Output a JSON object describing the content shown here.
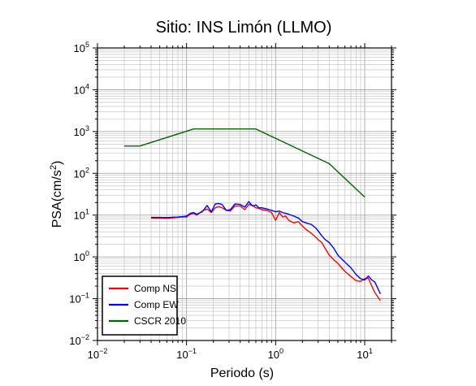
{
  "chart_data": {
    "type": "line",
    "title": "Sitio: INS Limón (LLMO)",
    "xlabel": "Periodo (s)",
    "ylabel": {
      "base": "PSA(cm/s",
      "sup": "2",
      "tail": ")"
    },
    "x_scale": "log",
    "y_scale": "log",
    "xlim": [
      0.01,
      20
    ],
    "ylim": [
      0.01,
      100000
    ],
    "grid": true,
    "legend_position": "bottom-left",
    "x_ticks": [
      {
        "base": "10",
        "exp": "−2",
        "value": 0.01
      },
      {
        "base": "10",
        "exp": "−1",
        "value": 0.1
      },
      {
        "base": "10",
        "exp": "0",
        "value": 1
      },
      {
        "base": "10",
        "exp": "1",
        "value": 10
      }
    ],
    "y_ticks": [
      {
        "base": "10",
        "exp": "−2",
        "value": 0.01
      },
      {
        "base": "10",
        "exp": "−1",
        "value": 0.1
      },
      {
        "base": "10",
        "exp": "0",
        "value": 1
      },
      {
        "base": "10",
        "exp": "1",
        "value": 10
      },
      {
        "base": "10",
        "exp": "2",
        "value": 100
      },
      {
        "base": "10",
        "exp": "3",
        "value": 1000
      },
      {
        "base": "10",
        "exp": "4",
        "value": 10000
      },
      {
        "base": "10",
        "exp": "5",
        "value": 100000
      }
    ],
    "series": [
      {
        "name": "Comp NS",
        "color": "#ff0000",
        "x": [
          0.04,
          0.05,
          0.06,
          0.07,
          0.08,
          0.09,
          0.1,
          0.11,
          0.12,
          0.13,
          0.15,
          0.17,
          0.19,
          0.21,
          0.23,
          0.25,
          0.28,
          0.31,
          0.35,
          0.4,
          0.45,
          0.5,
          0.55,
          0.6,
          0.65,
          0.7,
          0.8,
          0.9,
          1.0,
          1.1,
          1.2,
          1.3,
          1.4,
          1.6,
          1.8,
          2.0,
          2.2,
          2.5,
          2.8,
          3.0,
          3.3,
          3.6,
          4.0,
          4.5,
          5.0,
          5.5,
          6.0,
          7.0,
          8.0,
          9.0,
          10.0,
          11.0,
          12.0,
          13.0,
          15.0
        ],
        "y": [
          8.5,
          8.5,
          8.4,
          8.6,
          8.8,
          9.0,
          9.0,
          10.5,
          11.0,
          10.0,
          12.5,
          14.0,
          11.5,
          15.0,
          16.0,
          15.0,
          13.0,
          12.5,
          16.5,
          16.5,
          13.5,
          18.0,
          17.0,
          15.0,
          14.5,
          13.5,
          13.0,
          11.5,
          7.5,
          11.5,
          9.0,
          9.5,
          7.5,
          6.5,
          7.0,
          5.5,
          4.5,
          3.7,
          3.0,
          2.6,
          2.2,
          1.6,
          1.1,
          0.85,
          0.7,
          0.55,
          0.45,
          0.34,
          0.27,
          0.26,
          0.3,
          0.31,
          0.2,
          0.14,
          0.09
        ]
      },
      {
        "name": "Comp EW",
        "color": "#0000ff",
        "x": [
          0.04,
          0.05,
          0.06,
          0.07,
          0.08,
          0.09,
          0.1,
          0.11,
          0.12,
          0.13,
          0.15,
          0.17,
          0.19,
          0.21,
          0.23,
          0.25,
          0.28,
          0.31,
          0.35,
          0.4,
          0.45,
          0.5,
          0.55,
          0.6,
          0.65,
          0.7,
          0.8,
          0.9,
          1.0,
          1.1,
          1.2,
          1.3,
          1.4,
          1.6,
          1.8,
          2.0,
          2.2,
          2.5,
          2.8,
          3.0,
          3.3,
          3.6,
          4.0,
          4.5,
          5.0,
          5.5,
          6.0,
          7.0,
          8.0,
          9.0,
          10.0,
          11.0,
          12.0,
          13.0,
          15.0
        ],
        "y": [
          8.8,
          8.8,
          8.7,
          8.9,
          9.0,
          9.2,
          9.5,
          11.0,
          11.5,
          10.5,
          12.0,
          17.0,
          12.0,
          18.5,
          19.0,
          18.0,
          13.0,
          13.5,
          18.5,
          18.0,
          15.5,
          21.0,
          16.5,
          17.5,
          15.0,
          15.0,
          14.0,
          13.0,
          12.0,
          12.5,
          11.5,
          11.0,
          10.5,
          9.5,
          8.5,
          7.0,
          6.5,
          6.0,
          5.0,
          4.2,
          3.2,
          2.6,
          2.2,
          1.6,
          1.1,
          0.9,
          0.75,
          0.55,
          0.38,
          0.3,
          0.28,
          0.35,
          0.28,
          0.25,
          0.13
        ]
      },
      {
        "name": "CSCR 2010",
        "color": "#006400",
        "x": [
          0.02,
          0.03,
          0.12,
          0.6,
          4.0,
          10.0
        ],
        "y": [
          450,
          450,
          1150,
          1150,
          170,
          27
        ]
      }
    ]
  }
}
